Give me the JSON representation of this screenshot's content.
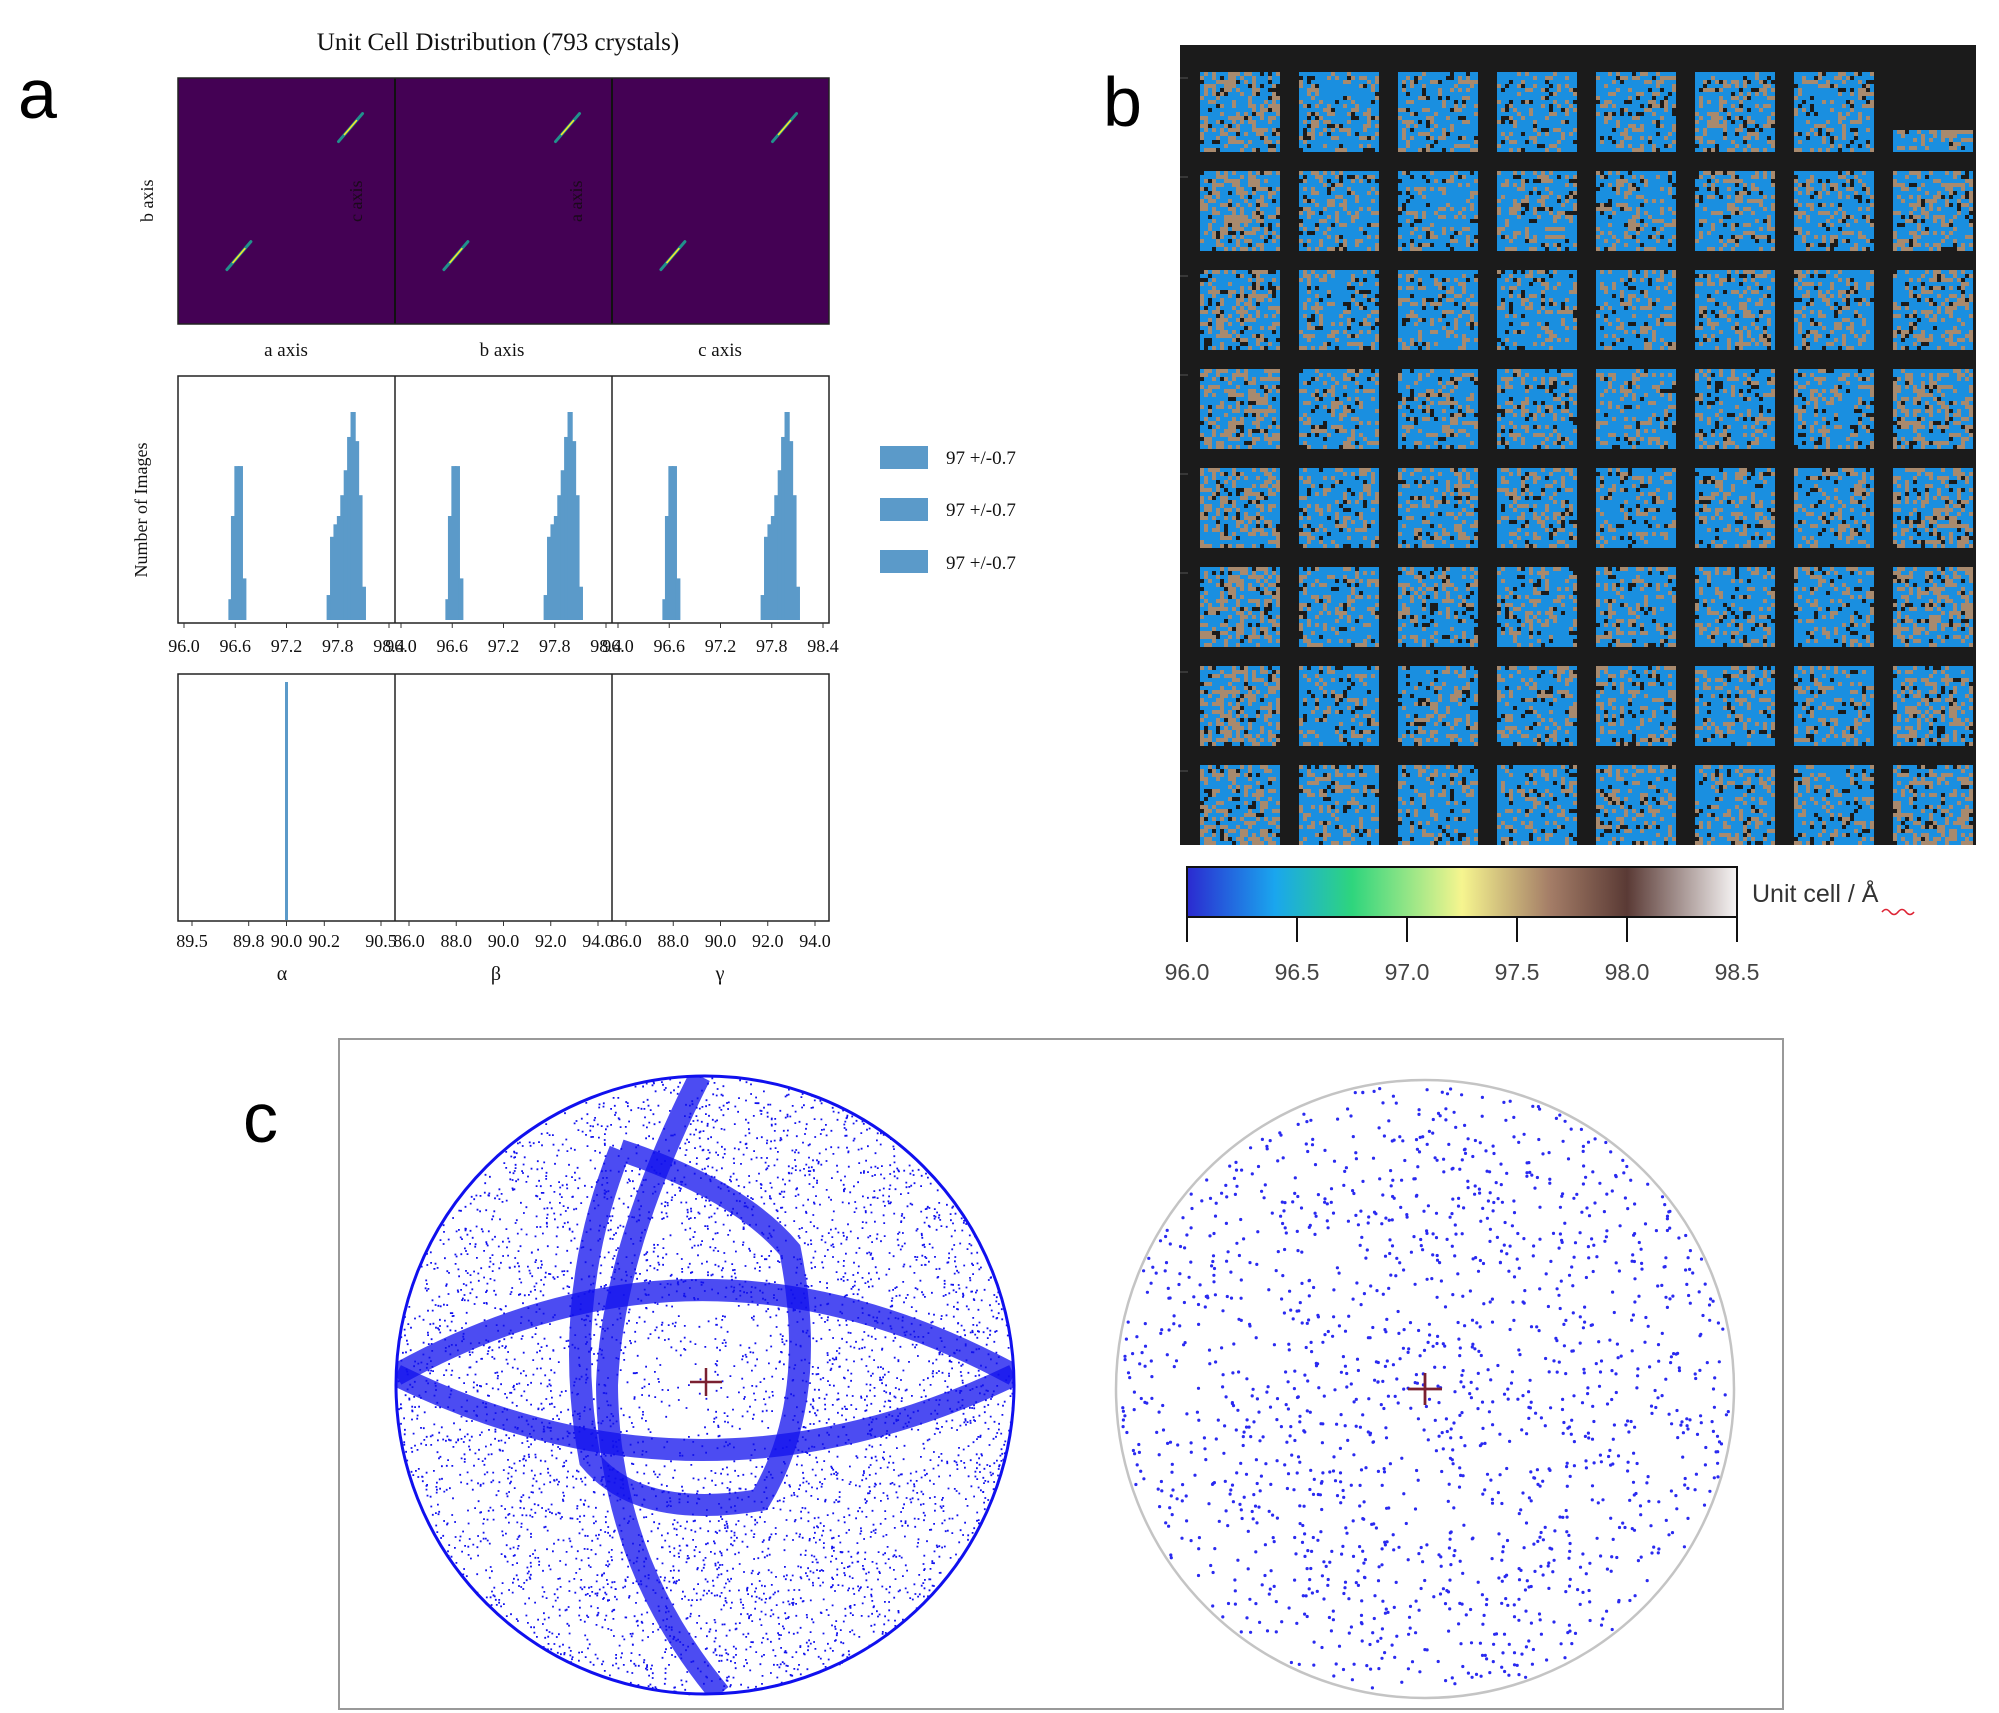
{
  "panels": {
    "a": {
      "letter": "a",
      "title": "Unit Cell Distribution (793 crystals)",
      "scatter": {
        "ylabel": "b axis",
        "xlabels": [
          "a axis",
          "b axis",
          "c axis"
        ],
        "inner_labels": [
          "c axis",
          "a axis"
        ],
        "points": [
          {
            "x": 96.62,
            "y": 96.62
          },
          {
            "x": 97.98,
            "y": 97.98
          }
        ]
      },
      "histograms": {
        "ylabel": "Number of Images",
        "ticks": [
          "96.0",
          "96.6",
          "97.2",
          "97.8",
          "98.4"
        ],
        "xlim": [
          96.0,
          98.4
        ],
        "series": [
          {
            "axis": "a",
            "values": [
              [
                96.55,
                0.1
              ],
              [
                96.58,
                0.5
              ],
              [
                96.62,
                0.74
              ],
              [
                96.66,
                0.74
              ],
              [
                96.7,
                0.2
              ],
              [
                97.7,
                0.12
              ],
              [
                97.74,
                0.4
              ],
              [
                97.78,
                0.46
              ],
              [
                97.82,
                0.5
              ],
              [
                97.86,
                0.6
              ],
              [
                97.9,
                0.72
              ],
              [
                97.94,
                0.88
              ],
              [
                97.98,
                1.0
              ],
              [
                98.02,
                0.86
              ],
              [
                98.06,
                0.6
              ],
              [
                98.1,
                0.16
              ]
            ]
          },
          {
            "axis": "b",
            "values": [
              [
                96.55,
                0.1
              ],
              [
                96.58,
                0.5
              ],
              [
                96.62,
                0.74
              ],
              [
                96.66,
                0.74
              ],
              [
                96.7,
                0.2
              ],
              [
                97.7,
                0.12
              ],
              [
                97.74,
                0.4
              ],
              [
                97.78,
                0.46
              ],
              [
                97.82,
                0.5
              ],
              [
                97.86,
                0.6
              ],
              [
                97.9,
                0.72
              ],
              [
                97.94,
                0.88
              ],
              [
                97.98,
                1.0
              ],
              [
                98.02,
                0.86
              ],
              [
                98.06,
                0.6
              ],
              [
                98.1,
                0.16
              ]
            ]
          },
          {
            "axis": "c",
            "values": [
              [
                96.55,
                0.1
              ],
              [
                96.58,
                0.5
              ],
              [
                96.62,
                0.74
              ],
              [
                96.66,
                0.74
              ],
              [
                96.7,
                0.2
              ],
              [
                97.7,
                0.12
              ],
              [
                97.74,
                0.4
              ],
              [
                97.78,
                0.46
              ],
              [
                97.82,
                0.5
              ],
              [
                97.86,
                0.6
              ],
              [
                97.9,
                0.72
              ],
              [
                97.94,
                0.88
              ],
              [
                97.98,
                1.0
              ],
              [
                98.02,
                0.86
              ],
              [
                98.06,
                0.6
              ],
              [
                98.1,
                0.16
              ]
            ]
          }
        ],
        "legend": [
          "97 +/-0.7",
          "97 +/-0.7",
          "97 +/-0.7"
        ],
        "bar_color": "#5b9ac9"
      },
      "angles": {
        "ticks": [
          [
            "89.5",
            "89.8",
            "90.0",
            "90.2",
            "90.5"
          ],
          [
            "86.0",
            "88.0",
            "90.0",
            "92.0",
            "94.0"
          ],
          [
            "86.0",
            "88.0",
            "90.0",
            "92.0",
            "94.0"
          ]
        ],
        "xlabels": [
          "α",
          "β",
          "γ"
        ],
        "alpha_peak": 90.0
      }
    },
    "b": {
      "letter": "b",
      "grid": {
        "rows": 8,
        "cols": 8
      },
      "colorbar": {
        "label": "Unit cell / Å",
        "ticks": [
          "96.0",
          "96.5",
          "97.0",
          "97.5",
          "98.0",
          "98.5"
        ],
        "range": [
          96.0,
          98.5
        ],
        "stops": [
          "#2b2ad0",
          "#1aa6ee",
          "#2ed57d",
          "#f6f58f",
          "#a47d67",
          "#5a3a35",
          "#f7f5f5"
        ]
      },
      "colors": {
        "background": "#1b1b1b",
        "blue": "#1a8fe0",
        "tan": "#a88a6e"
      }
    },
    "c": {
      "letter": "c",
      "left": {
        "point_color": "#1010ee",
        "density": "dense"
      },
      "right": {
        "point_color": "#2a2af0",
        "density": "sparse"
      },
      "center_marker_color": "#7a2030"
    }
  }
}
